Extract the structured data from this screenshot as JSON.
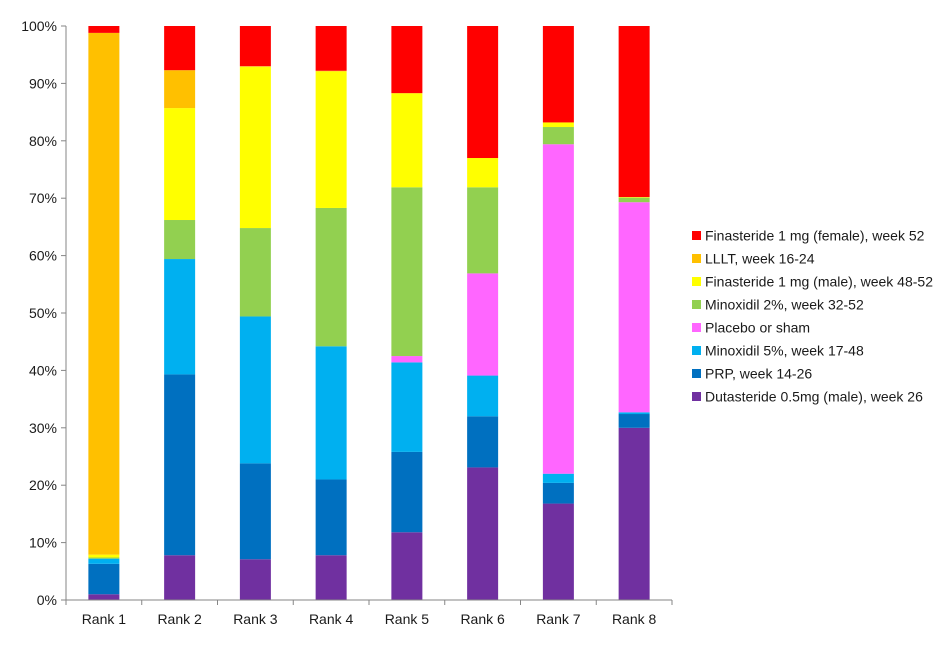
{
  "chart_data": {
    "type": "bar",
    "stacked": true,
    "normalized": true,
    "categories": [
      "Rank 1",
      "Rank 2",
      "Rank 3",
      "Rank 4",
      "Rank 5",
      "Rank 6",
      "Rank 7",
      "Rank 8"
    ],
    "ylim": [
      0,
      100
    ],
    "yticks": [
      "0%",
      "10%",
      "20%",
      "30%",
      "40%",
      "50%",
      "60%",
      "70%",
      "80%",
      "90%",
      "100%"
    ],
    "title": "",
    "xlabel": "",
    "ylabel": "",
    "grid": false,
    "legend_position": "right",
    "series": [
      {
        "name": "Dutasteride 0.5mg (male), week 26",
        "color": "#7030A0",
        "values": [
          1.0,
          7.8,
          7.1,
          7.8,
          11.8,
          23.1,
          16.8,
          30.0
        ]
      },
      {
        "name": "PRP, week 14-26",
        "color": "#0070C0",
        "values": [
          5.3,
          31.5,
          16.7,
          13.2,
          14.0,
          8.9,
          3.6,
          2.4
        ]
      },
      {
        "name": "Minoxidil 5%, week 17-48",
        "color": "#00B0F0",
        "values": [
          0.9,
          20.1,
          25.6,
          23.2,
          15.6,
          7.1,
          1.6,
          0.3
        ]
      },
      {
        "name": "Placebo or sham",
        "color": "#FF66FF",
        "values": [
          0.0,
          0.0,
          0.0,
          0.0,
          1.1,
          17.8,
          57.4,
          36.6
        ]
      },
      {
        "name": "Minoxidil 2%, week 32-52",
        "color": "#92D050",
        "values": [
          0.2,
          6.8,
          15.4,
          24.1,
          29.4,
          15.0,
          3.0,
          0.8
        ]
      },
      {
        "name": "Finasteride 1 mg (male), week 48-52",
        "color": "#FFFF00",
        "values": [
          0.5,
          19.5,
          28.1,
          23.8,
          16.4,
          5.1,
          0.8,
          0.1
        ]
      },
      {
        "name": "LLLT, week 16-24",
        "color": "#FFC000",
        "values": [
          90.9,
          6.6,
          0.1,
          0.1,
          0.0,
          0.0,
          0.0,
          0.0
        ]
      },
      {
        "name": "Finasteride 1 mg (female), week 52",
        "color": "#FF0000",
        "values": [
          1.2,
          7.7,
          7.0,
          7.8,
          11.7,
          23.0,
          16.8,
          29.8
        ]
      }
    ]
  }
}
